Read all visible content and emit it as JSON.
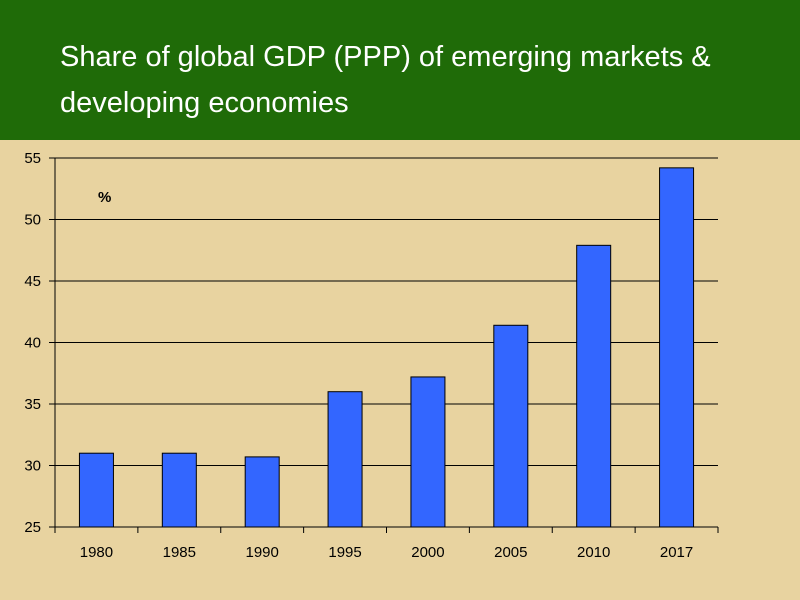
{
  "header": {
    "title": "Share of global GDP (PPP) of emerging markets & developing economies"
  },
  "chart_data": {
    "type": "bar",
    "title": "Share of global GDP (PPP) of emerging markets & developing economies",
    "unit_label": "%",
    "categories": [
      "1980",
      "1985",
      "1990",
      "1995",
      "2000",
      "2005",
      "2010",
      "2017"
    ],
    "values": [
      31.0,
      31.0,
      30.7,
      36.0,
      37.2,
      41.4,
      47.9,
      54.2
    ],
    "ylim": [
      25,
      55
    ],
    "yticks": [
      25,
      30,
      35,
      40,
      45,
      50,
      55
    ],
    "grid": true,
    "legend": "none",
    "colors": {
      "bar": "#3366ff",
      "bar_border": "#000000",
      "grid": "#000000",
      "header_bg": "#1f6b08",
      "plot_bg": "#e8d3a0"
    }
  }
}
